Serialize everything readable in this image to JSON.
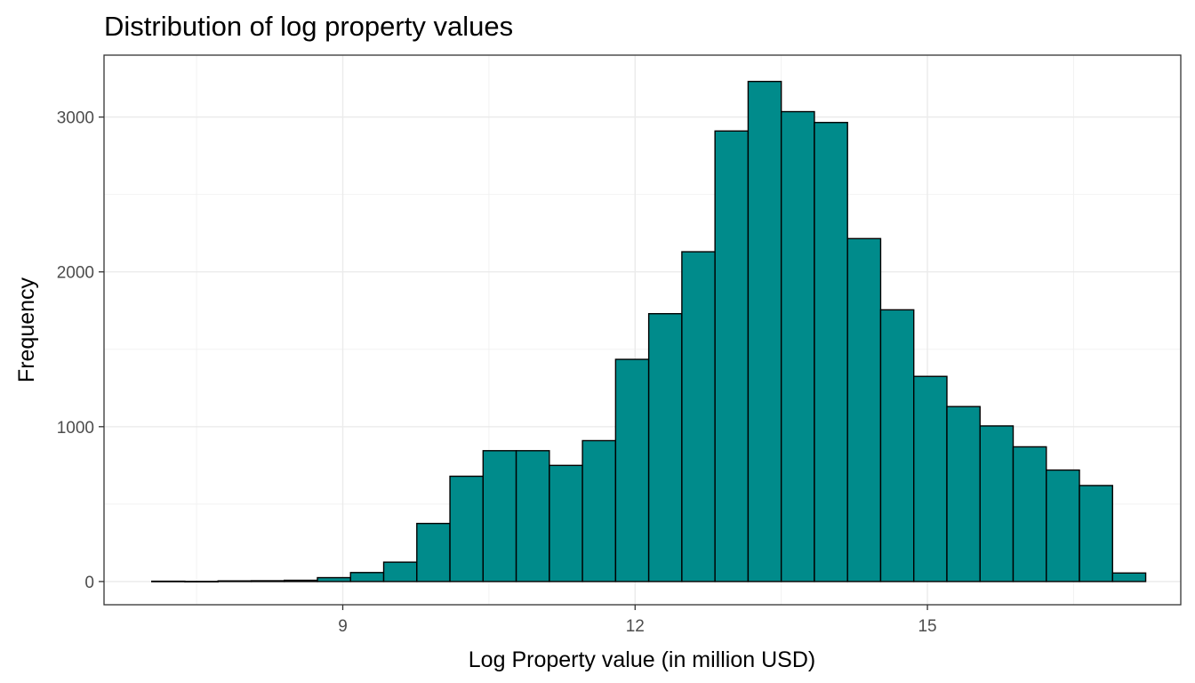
{
  "chart_data": {
    "type": "bar",
    "subtype": "histogram",
    "title": "Distribution of log property values",
    "xlabel": "Log Property value (in million USD)",
    "ylabel": "Frequency",
    "xlim": [
      6.55,
      17.6
    ],
    "ylim": [
      -150,
      3400
    ],
    "x_ticks": [
      9,
      12,
      15
    ],
    "y_ticks": [
      0,
      1000,
      2000,
      3000
    ],
    "bin_width": 0.34,
    "bins": [
      {
        "x": 7.21,
        "count": 2
      },
      {
        "x": 7.55,
        "count": 1
      },
      {
        "x": 7.89,
        "count": 4
      },
      {
        "x": 8.23,
        "count": 5
      },
      {
        "x": 8.57,
        "count": 8
      },
      {
        "x": 8.91,
        "count": 25
      },
      {
        "x": 9.25,
        "count": 58
      },
      {
        "x": 9.59,
        "count": 125
      },
      {
        "x": 9.93,
        "count": 375
      },
      {
        "x": 10.27,
        "count": 680
      },
      {
        "x": 10.61,
        "count": 845
      },
      {
        "x": 10.95,
        "count": 845
      },
      {
        "x": 11.29,
        "count": 750
      },
      {
        "x": 11.63,
        "count": 910
      },
      {
        "x": 11.97,
        "count": 1435
      },
      {
        "x": 12.31,
        "count": 1730
      },
      {
        "x": 12.65,
        "count": 2130
      },
      {
        "x": 12.99,
        "count": 2910
      },
      {
        "x": 13.33,
        "count": 3230
      },
      {
        "x": 13.67,
        "count": 3035
      },
      {
        "x": 14.01,
        "count": 2965
      },
      {
        "x": 14.35,
        "count": 2215
      },
      {
        "x": 14.69,
        "count": 1755
      },
      {
        "x": 15.03,
        "count": 1325
      },
      {
        "x": 15.37,
        "count": 1130
      },
      {
        "x": 15.71,
        "count": 1005
      },
      {
        "x": 16.05,
        "count": 870
      },
      {
        "x": 16.39,
        "count": 720
      },
      {
        "x": 16.73,
        "count": 620
      },
      {
        "x": 17.07,
        "count": 55
      }
    ],
    "fill_color": "#008b8b",
    "border_color": "#000000",
    "grid": true,
    "legend": "none",
    "theme": "bw"
  }
}
